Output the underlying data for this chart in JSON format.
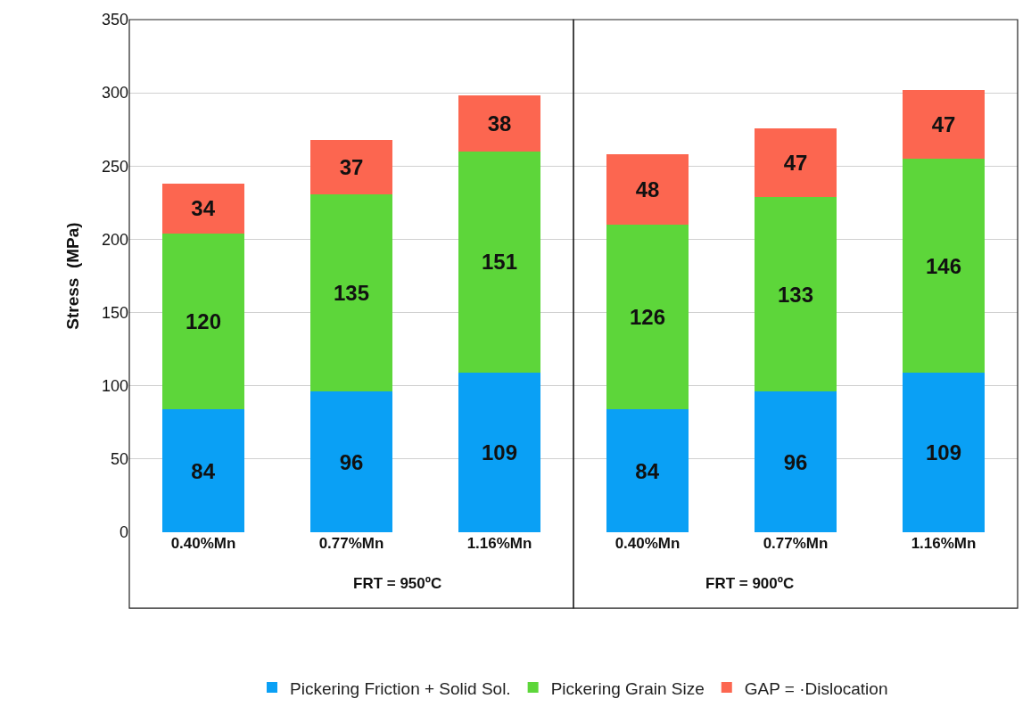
{
  "chart_data": {
    "type": "bar",
    "stacked": true,
    "ylabel": "Stress  (MPa)",
    "categories": [
      "0.40%Mn",
      "0.77%Mn",
      "1.16%Mn",
      "0.40%Mn",
      "0.77%Mn",
      "1.16%Mn"
    ],
    "series": [
      {
        "name": "Pickering Friction + Solid Sol.",
        "color": "#0aa0f5",
        "values": [
          84,
          96,
          109,
          84,
          96,
          109
        ]
      },
      {
        "name": "Pickering Grain Size",
        "color": "#5dd63a",
        "values": [
          120,
          135,
          151,
          126,
          133,
          146
        ]
      },
      {
        "name": "GAP = ·Dislocation",
        "color": "#fc6650",
        "values": [
          34,
          37,
          38,
          48,
          47,
          47
        ]
      }
    ],
    "ylim": [
      0,
      350
    ],
    "yticks": [
      0,
      50,
      100,
      150,
      200,
      250,
      300,
      350
    ],
    "grid": "y",
    "legend": "bottom",
    "data_labels": true,
    "annotations": [
      "FRT = 950ºC",
      "FRT = 900ºC"
    ]
  }
}
